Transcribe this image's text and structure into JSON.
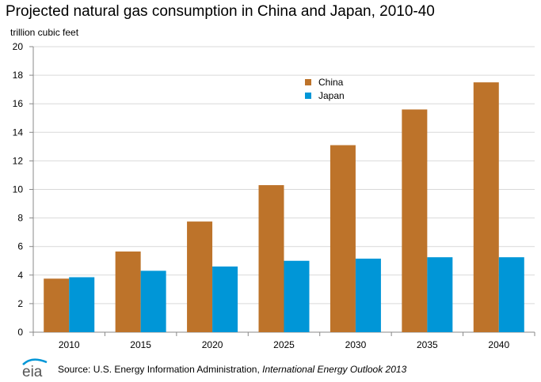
{
  "chart_data": {
    "type": "bar",
    "title": "Projected natural gas consumption in China and Japan, 2010-40",
    "ylabel": "trillion cubic feet",
    "xlabel": "",
    "categories": [
      "2010",
      "2015",
      "2020",
      "2025",
      "2030",
      "2035",
      "2040"
    ],
    "series": [
      {
        "name": "China",
        "color": "#bd732a",
        "values": [
          3.75,
          5.65,
          7.75,
          10.3,
          13.1,
          15.6,
          17.5
        ]
      },
      {
        "name": "Japan",
        "color": "#0096d7",
        "values": [
          3.85,
          4.3,
          4.6,
          5.0,
          5.15,
          5.25,
          5.25
        ]
      }
    ],
    "ylim": [
      0,
      20
    ],
    "yticks": [
      0,
      2,
      4,
      6,
      8,
      10,
      12,
      14,
      16,
      18,
      20
    ],
    "grid": true,
    "legend": "top-center"
  },
  "source": {
    "prefix": "Source: U.S. Energy Information Administration, ",
    "title": "International Energy Outlook 2013"
  },
  "logo": {
    "text": "eia",
    "icon": "eia-logo-icon"
  }
}
